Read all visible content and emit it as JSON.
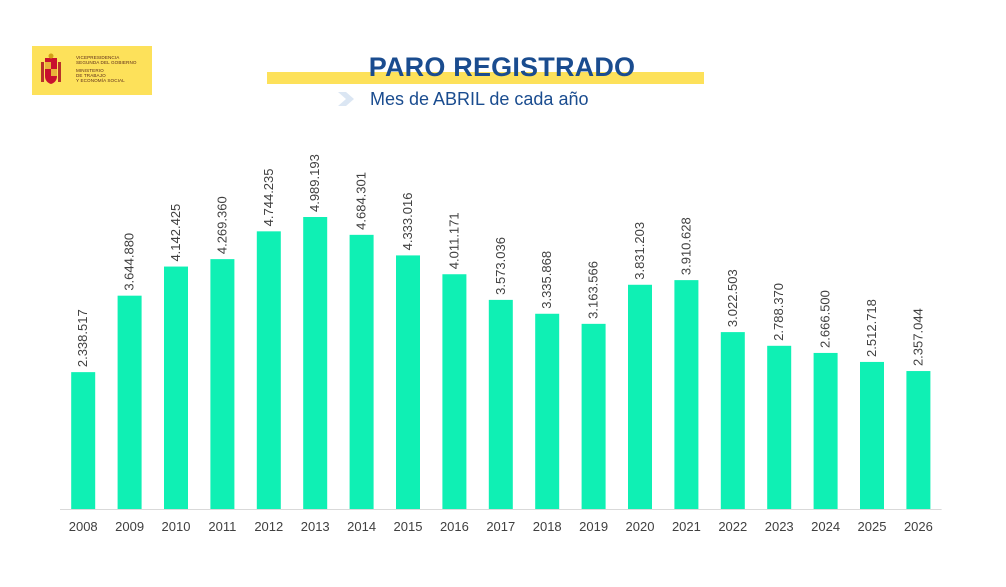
{
  "logo": {
    "icon": "coat-of-arms-icon",
    "line1": "VICEPRESIDENCIA\nSEGUNDA DEL GOBIERNO",
    "line2": "MINISTERIO\nDE TRABAJO\nY ECONOMÍA SOCIAL"
  },
  "header": {
    "title": "PARO REGISTRADO",
    "subtitle": "Mes de ABRIL de cada año",
    "subtitle_icon": "chevron-right-icon"
  },
  "colors": {
    "bar": "#0ff0b4",
    "accent": "#fde15a",
    "title": "#1a4c8f",
    "label": "#404040"
  },
  "chart_data": {
    "type": "bar",
    "categories": [
      "2008",
      "2009",
      "2010",
      "2011",
      "2012",
      "2013",
      "2014",
      "2015",
      "2016",
      "2017",
      "2018",
      "2019",
      "2020",
      "2021",
      "2022",
      "2023",
      "2024",
      "2025",
      "2026"
    ],
    "values": [
      2338517,
      3644880,
      4142425,
      4269360,
      4744235,
      4989193,
      4684301,
      4333016,
      4011171,
      3573036,
      3335868,
      3163566,
      3831203,
      3910628,
      3022503,
      2788370,
      2666500,
      2512718,
      2357044
    ],
    "labels": [
      "2.338.517",
      "3.644.880",
      "4.142.425",
      "4.269.360",
      "4.744.235",
      "4.989.193",
      "4.684.301",
      "4.333.016",
      "4.011.171",
      "3.573.036",
      "3.335.868",
      "3.163.566",
      "3.831.203",
      "3.910.628",
      "3.022.503",
      "2.788.370",
      "2.666.500",
      "2.512.718",
      "2.357.044"
    ],
    "title": "PARO REGISTRADO",
    "subtitle": "Mes de ABRIL de cada año",
    "ylim": [
      0,
      5300000
    ],
    "grid": false,
    "legend": "none"
  }
}
